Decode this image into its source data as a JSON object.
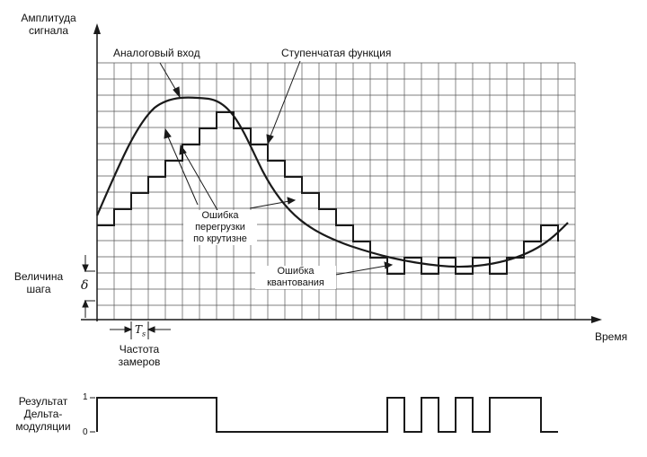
{
  "labels": {
    "y_axis_line1": "Амплитуда",
    "y_axis_line2": "сигнала",
    "x_axis": "Время",
    "analog_input": "Аналоговый вход",
    "step_function": "Ступенчатая функция",
    "slope_error_line1": "Ошибка",
    "slope_error_line2": "перегрузки",
    "slope_error_line3": "по крутизне",
    "quant_error_line1": "Ошибка",
    "quant_error_line2": "квантования",
    "step_size_line1": "Величина",
    "step_size_line2": "шага",
    "delta_symbol": "δ",
    "sample_period_symbol": "T",
    "sample_period_sub": "s",
    "sample_rate_line1": "Частота",
    "sample_rate_line2": "замеров",
    "output_line1": "Результат",
    "output_line2": "Дельта-",
    "output_line3": "модуляции",
    "level_one": "1",
    "level_zero": "0"
  },
  "delta_bits": [
    1,
    1,
    1,
    1,
    1,
    1,
    1,
    0,
    0,
    0,
    0,
    0,
    0,
    0,
    0,
    0,
    0,
    1,
    0,
    1,
    0,
    1,
    0,
    1,
    1,
    1,
    0
  ],
  "colors": {
    "ink": "#1a1a1a",
    "grid": "#555555",
    "background": "#ffffff"
  }
}
